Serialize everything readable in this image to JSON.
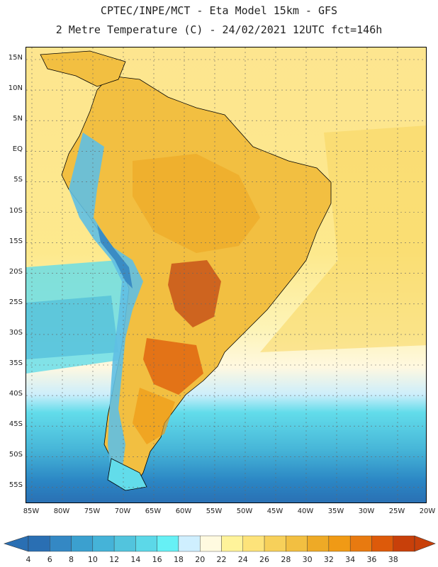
{
  "title": {
    "line1": "CPTEC/INPE/MCT -  Eta Model 15km - GFS",
    "line2": "2 Metre Temperature (C) - 24/02/2021 12UTC fct=146h"
  },
  "map": {
    "lat_labels": [
      "15N",
      "10N",
      "5N",
      "EQ",
      "5S",
      "10S",
      "15S",
      "20S",
      "25S",
      "30S",
      "35S",
      "40S",
      "45S",
      "50S",
      "55S"
    ],
    "lon_labels": [
      "85W",
      "80W",
      "75W",
      "70W",
      "65W",
      "60W",
      "55W",
      "50W",
      "45W",
      "40W",
      "35W",
      "30W",
      "25W",
      "20W"
    ],
    "colors": {
      "ocean_north": "#fde68a",
      "ocean_mid": "#fdf0b0",
      "land_hot": "#f0b63e",
      "land_hotter": "#e89a2a",
      "land_hottest": "#c8541a",
      "andes": "#5fbfe3",
      "andes_cold": "#3a8cc4",
      "ocean_south_warm": "#cdeefb",
      "ocean_south_mid": "#62dcea",
      "ocean_south_cold": "#47b6d8",
      "ocean_polar": "#2b86c4",
      "coast": "#000000"
    }
  },
  "colorbar": {
    "labels": [
      "4",
      "6",
      "8",
      "10",
      "12",
      "14",
      "16",
      "18",
      "20",
      "22",
      "24",
      "26",
      "28",
      "30",
      "32",
      "34",
      "36",
      "38"
    ],
    "colors": [
      "#2a6fb3",
      "#3488c4",
      "#3ba0cf",
      "#45b3d8",
      "#52c4dd",
      "#5cd8e8",
      "#66f0f5",
      "#cfefff",
      "#fffae0",
      "#fff39a",
      "#fde37a",
      "#f7d05a",
      "#f2bf41",
      "#eeaa26",
      "#f09a15",
      "#e87a10",
      "#dd5a0a",
      "#c8400a"
    ],
    "left_arrow_color": "#2a6fb3",
    "right_arrow_color": "#c8400a"
  }
}
